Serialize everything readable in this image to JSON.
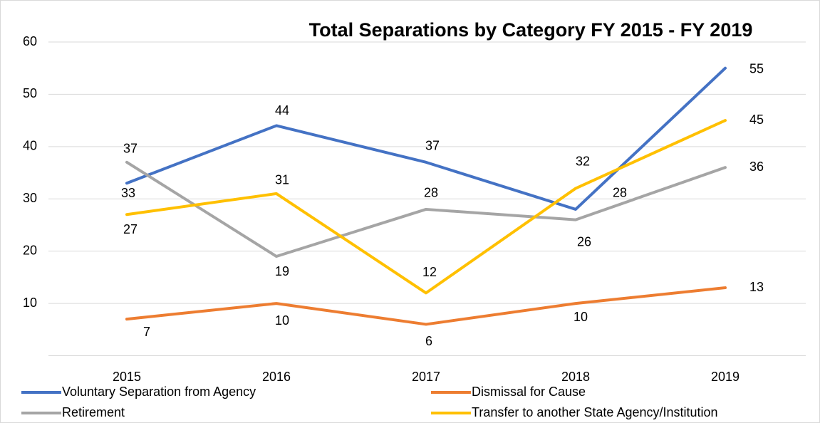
{
  "chart_data": {
    "type": "line",
    "title": "Total Separations by Category FY 2015 - FY 2019",
    "categories": [
      "2015",
      "2016",
      "2017",
      "2018",
      "2019"
    ],
    "series": [
      {
        "name": "Voluntary Separation from Agency",
        "color": "#4472c4",
        "values": [
          33,
          44,
          37,
          28,
          55
        ]
      },
      {
        "name": "Dismissal for Cause",
        "color": "#ed7d31",
        "values": [
          7,
          10,
          6,
          10,
          13
        ]
      },
      {
        "name": "Retirement",
        "color": "#a5a5a5",
        "values": [
          37,
          19,
          28,
          26,
          36
        ]
      },
      {
        "name": "Transfer to another State Agency/Institution",
        "color": "#ffc000",
        "values": [
          27,
          31,
          12,
          32,
          45
        ]
      }
    ],
    "ylim": [
      0,
      60
    ],
    "yticks": [
      10,
      20,
      30,
      40,
      50,
      60
    ],
    "grid": true,
    "legend": "bottom"
  }
}
